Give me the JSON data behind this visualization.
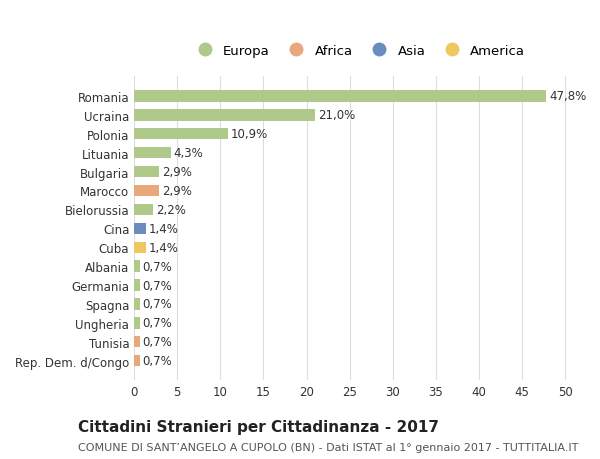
{
  "countries": [
    "Romania",
    "Ucraina",
    "Polonia",
    "Lituania",
    "Bulgaria",
    "Marocco",
    "Bielorussia",
    "Cina",
    "Cuba",
    "Albania",
    "Germania",
    "Spagna",
    "Ungheria",
    "Tunisia",
    "Rep. Dem. d/Congo"
  ],
  "values": [
    47.8,
    21.0,
    10.9,
    4.3,
    2.9,
    2.9,
    2.2,
    1.4,
    1.4,
    0.7,
    0.7,
    0.7,
    0.7,
    0.7,
    0.7
  ],
  "labels": [
    "47,8%",
    "21,0%",
    "10,9%",
    "4,3%",
    "2,9%",
    "2,9%",
    "2,2%",
    "1,4%",
    "1,4%",
    "0,7%",
    "0,7%",
    "0,7%",
    "0,7%",
    "0,7%",
    "0,7%"
  ],
  "continents": [
    "Europa",
    "Europa",
    "Europa",
    "Europa",
    "Europa",
    "Africa",
    "Europa",
    "Asia",
    "America",
    "Europa",
    "Europa",
    "Europa",
    "Europa",
    "Africa",
    "Africa"
  ],
  "continent_colors": {
    "Europa": "#aec98a",
    "Africa": "#e8a87c",
    "Asia": "#6b8cbf",
    "America": "#f0c75e"
  },
  "legend_order": [
    "Europa",
    "Africa",
    "Asia",
    "America"
  ],
  "xlim": [
    0,
    52
  ],
  "xticks": [
    0,
    5,
    10,
    15,
    20,
    25,
    30,
    35,
    40,
    45,
    50
  ],
  "title": "Cittadini Stranieri per Cittadinanza - 2017",
  "subtitle": "COMUNE DI SANT’ANGELO A CUPOLO (BN) - Dati ISTAT al 1° gennaio 2017 - TUTTITALIA.IT",
  "bg_color": "#ffffff",
  "grid_color": "#dddddd",
  "bar_height": 0.6,
  "label_fontsize": 8.5,
  "tick_fontsize": 8.5,
  "title_fontsize": 11,
  "subtitle_fontsize": 8.0
}
